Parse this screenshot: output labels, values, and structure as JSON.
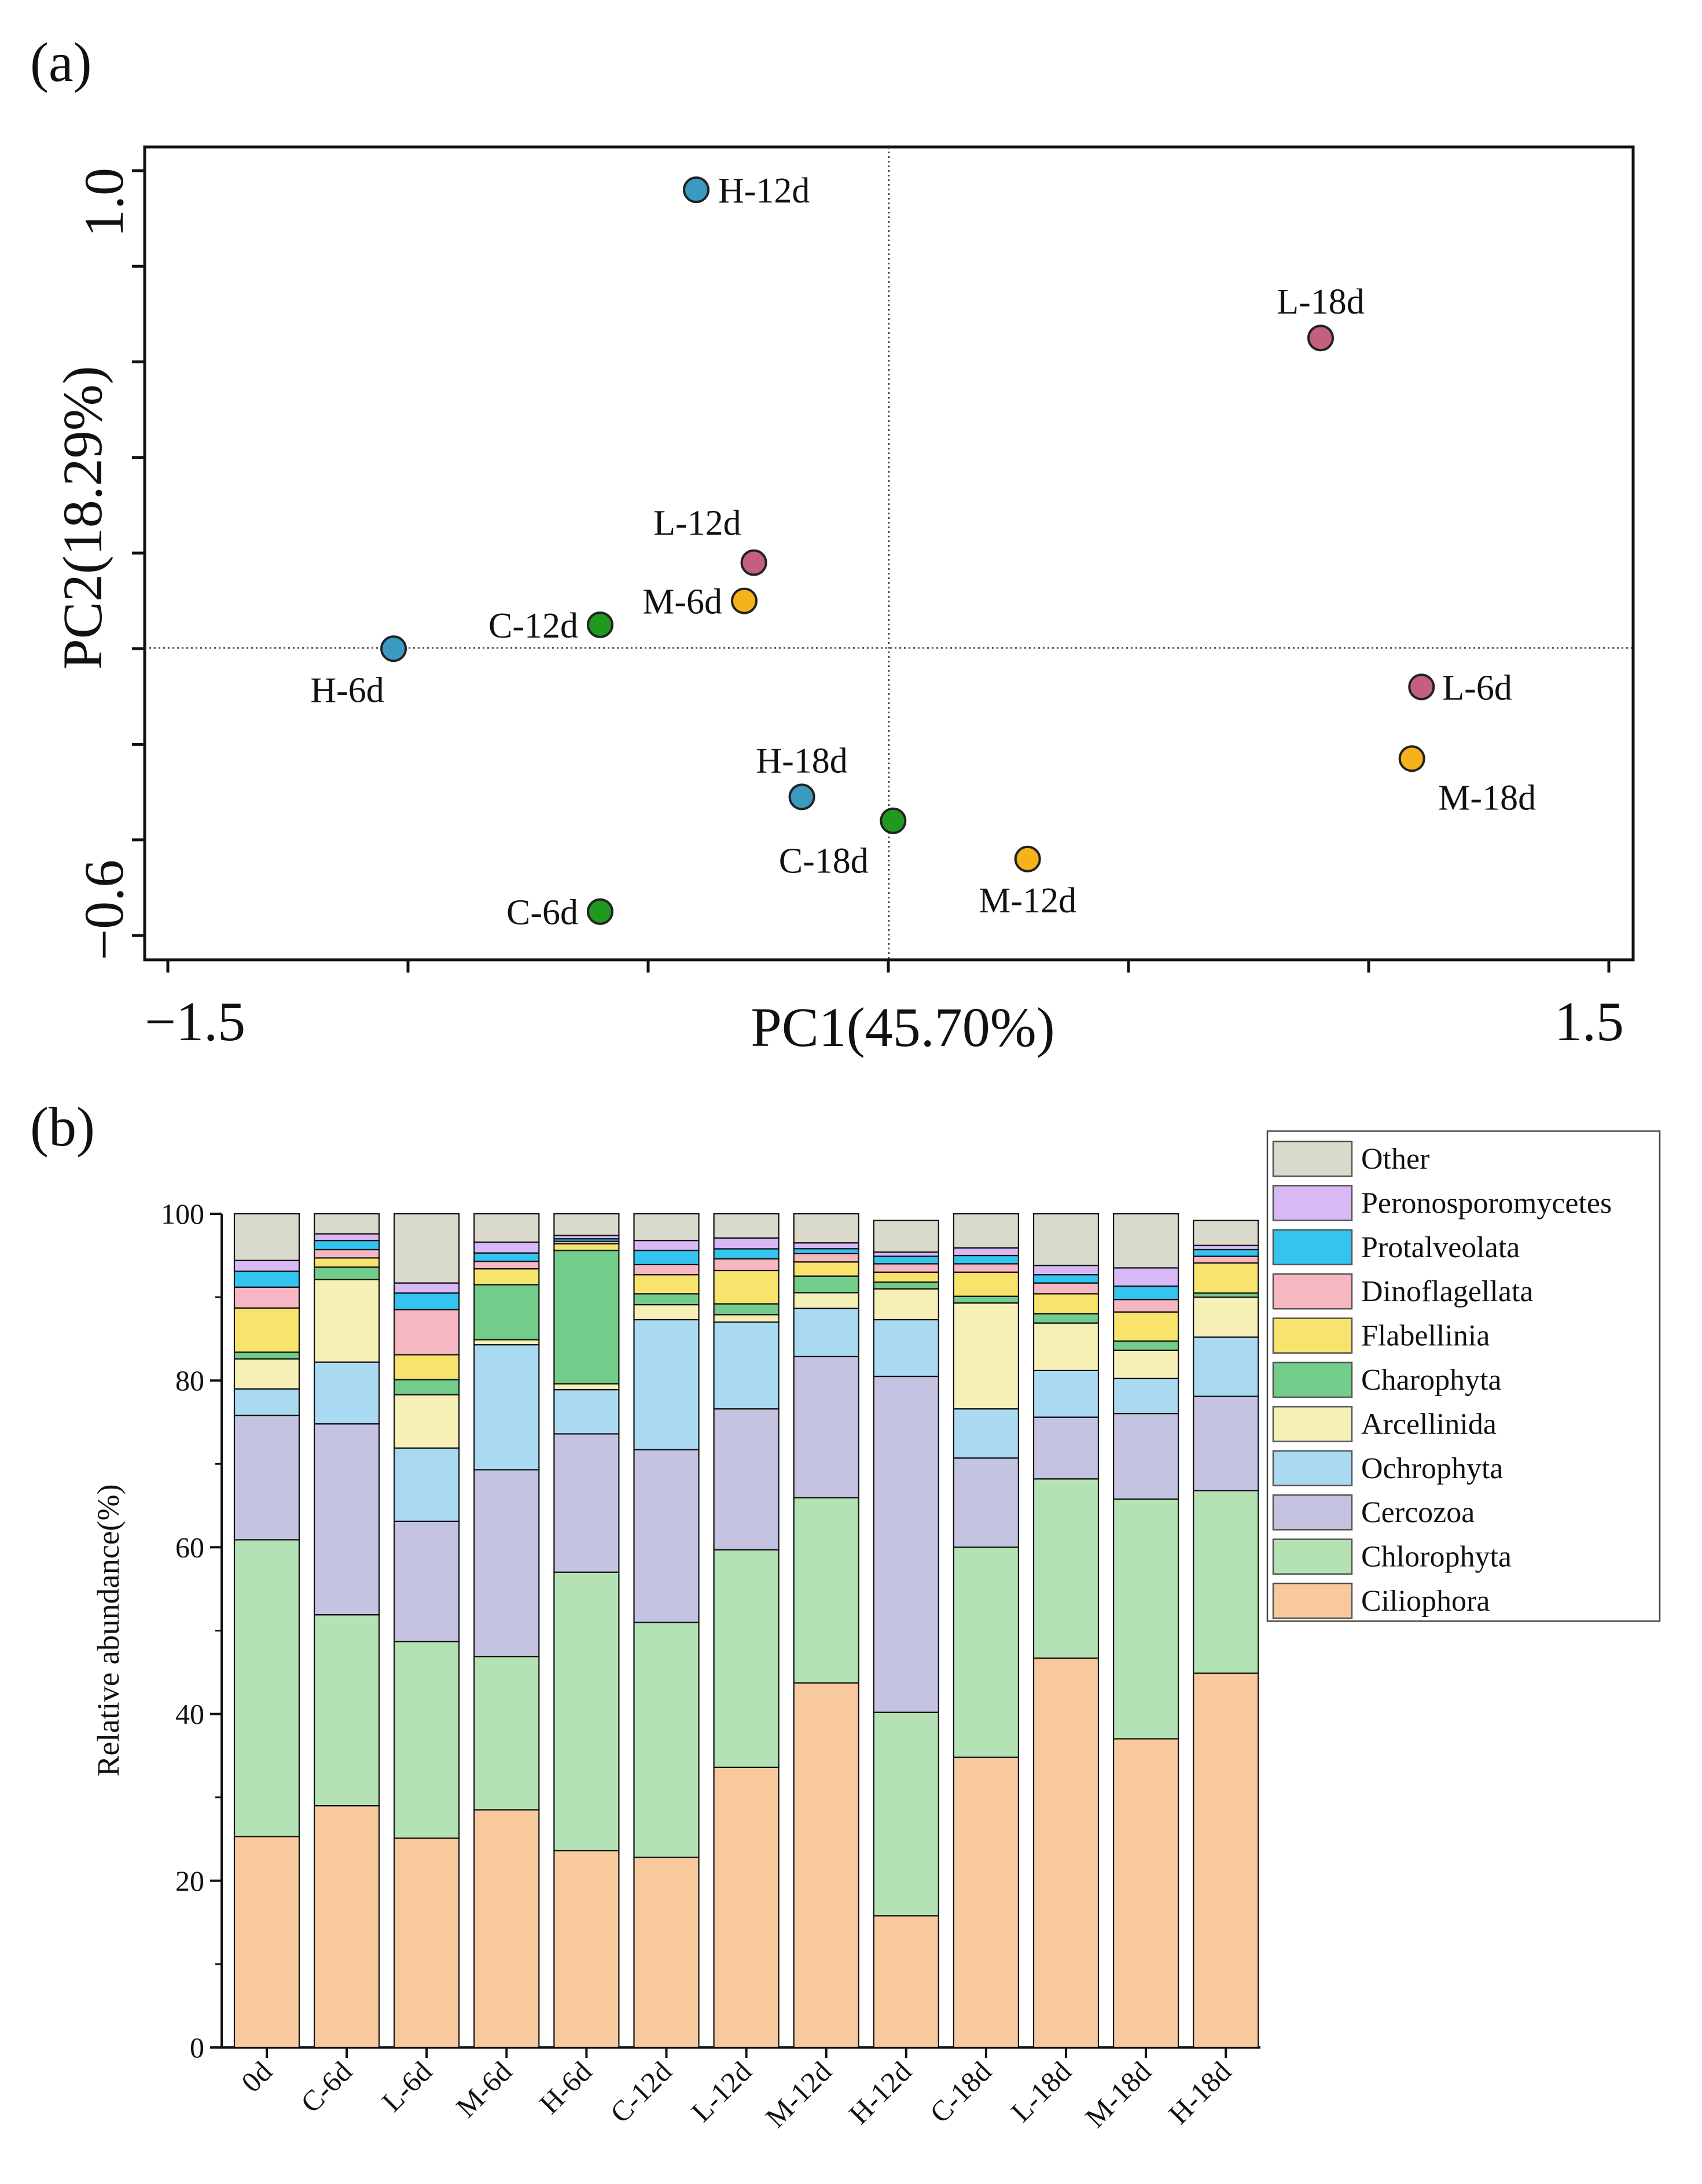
{
  "panels": {
    "a": "(a)",
    "b": "(b)"
  },
  "chart_data": [
    {
      "type": "scatter",
      "panel": "(a)",
      "title": "",
      "xlabel": "PC1(45.70%)",
      "ylabel": "PC2(18.29%)",
      "xlim": [
        -1.5,
        1.5
      ],
      "ylim": [
        -0.6,
        1.0
      ],
      "x_tick_labels": [
        "−1.5",
        "1.5"
      ],
      "y_tick_labels": [
        "−0.6",
        "1.0"
      ],
      "reference_lines": {
        "x": 0,
        "y": 0
      },
      "groups": [
        {
          "name": "C",
          "color": "#1f9a1f"
        },
        {
          "name": "L",
          "color": "#c45f7d"
        },
        {
          "name": "M",
          "color": "#f6b21a"
        },
        {
          "name": "H",
          "color": "#3b9ac0"
        }
      ],
      "points": [
        {
          "label": "H-12d",
          "group": "H",
          "x": -0.4,
          "y": 0.96
        },
        {
          "label": "L-18d",
          "group": "L",
          "x": 0.9,
          "y": 0.65
        },
        {
          "label": "L-12d",
          "group": "L",
          "x": -0.28,
          "y": 0.18
        },
        {
          "label": "M-6d",
          "group": "M",
          "x": -0.3,
          "y": 0.1
        },
        {
          "label": "C-12d",
          "group": "C",
          "x": -0.6,
          "y": 0.05
        },
        {
          "label": "H-6d",
          "group": "H",
          "x": -1.03,
          "y": 0.0
        },
        {
          "label": "L-6d",
          "group": "L",
          "x": 1.11,
          "y": -0.08
        },
        {
          "label": "M-18d",
          "group": "M",
          "x": 1.09,
          "y": -0.23
        },
        {
          "label": "H-18d",
          "group": "H",
          "x": -0.18,
          "y": -0.31
        },
        {
          "label": "C-18d",
          "group": "C",
          "x": 0.01,
          "y": -0.36
        },
        {
          "label": "M-12d",
          "group": "M",
          "x": 0.29,
          "y": -0.44
        },
        {
          "label": "C-6d",
          "group": "C",
          "x": -0.6,
          "y": -0.55
        }
      ]
    },
    {
      "type": "bar",
      "stacked": true,
      "panel": "(b)",
      "title": "",
      "xlabel": "",
      "ylabel": "Relative abundance(%)",
      "ylim": [
        0,
        100
      ],
      "y_ticks": [
        0,
        20,
        40,
        60,
        80,
        100
      ],
      "categories": [
        "0d",
        "C-6d",
        "L-6d",
        "M-6d",
        "H-6d",
        "C-12d",
        "L-12d",
        "M-12d",
        "H-12d",
        "C-18d",
        "L-18d",
        "M-18d",
        "H-18d"
      ],
      "legend_position": "top-right",
      "legend_order": [
        "Other",
        "Peronosporomycetes",
        "Protalveolata",
        "Dinoflagellata",
        "Flabellinia",
        "Charophyta",
        "Arcellinida",
        "Ochrophyta",
        "Cercozoa",
        "Chlorophyta",
        "Ciliophora"
      ],
      "series": [
        {
          "name": "Ciliophora",
          "color": "#f9c99e",
          "values": [
            25.3,
            29.0,
            25.1,
            28.5,
            23.6,
            22.8,
            33.6,
            43.9,
            15.8,
            34.8,
            46.7,
            37.1,
            44.9
          ]
        },
        {
          "name": "Chlorophyta",
          "color": "#b5e2b5",
          "values": [
            35.6,
            22.9,
            23.6,
            18.4,
            33.4,
            28.2,
            26.1,
            22.3,
            24.4,
            25.2,
            21.5,
            28.8,
            21.9
          ]
        },
        {
          "name": "Cercozoa",
          "color": "#c5c3e2",
          "values": [
            14.9,
            22.9,
            14.4,
            22.4,
            16.6,
            20.7,
            16.9,
            17.0,
            40.3,
            10.7,
            7.4,
            10.3,
            11.3
          ]
        },
        {
          "name": "Ochrophyta",
          "color": "#a9daf2",
          "values": [
            3.2,
            7.4,
            8.8,
            15.0,
            5.3,
            15.6,
            10.4,
            5.8,
            6.8,
            5.9,
            5.6,
            4.2,
            7.1
          ]
        },
        {
          "name": "Arcellinida",
          "color": "#f7f0b6",
          "values": [
            3.6,
            9.9,
            6.4,
            0.6,
            0.7,
            1.8,
            0.9,
            1.9,
            3.7,
            12.7,
            5.7,
            3.4,
            4.8
          ]
        },
        {
          "name": "Charophyta",
          "color": "#72cd8a",
          "values": [
            0.8,
            1.5,
            1.8,
            6.6,
            16.0,
            1.3,
            1.3,
            2.0,
            0.8,
            0.8,
            1.1,
            1.1,
            0.5
          ]
        },
        {
          "name": "Flabellinia",
          "color": "#f8e46d",
          "values": [
            5.3,
            1.1,
            3.0,
            1.9,
            0.8,
            2.3,
            4.0,
            1.7,
            1.2,
            2.9,
            2.4,
            3.5,
            3.6
          ]
        },
        {
          "name": "Dinoflagellata",
          "color": "#f6b7c3",
          "values": [
            2.5,
            1.0,
            5.4,
            0.9,
            0.3,
            1.2,
            1.4,
            1.0,
            1.0,
            1.0,
            1.3,
            1.5,
            0.8
          ]
        },
        {
          "name": "Protalveolata",
          "color": "#33c4ef",
          "values": [
            1.9,
            1.1,
            2.0,
            1.0,
            0.3,
            1.7,
            1.2,
            0.6,
            0.9,
            1.0,
            1.0,
            1.6,
            0.8
          ]
        },
        {
          "name": "Peronosporomycetes",
          "color": "#d8b8f5",
          "values": [
            1.3,
            0.8,
            1.2,
            1.3,
            0.4,
            1.2,
            1.3,
            0.7,
            0.5,
            0.9,
            1.1,
            2.2,
            0.5
          ]
        },
        {
          "name": "Other",
          "color": "#d9d9cc",
          "values": [
            5.6,
            2.4,
            8.3,
            3.4,
            2.6,
            3.2,
            2.9,
            3.5,
            3.8,
            4.1,
            6.2,
            6.5,
            3.0
          ]
        }
      ]
    }
  ]
}
